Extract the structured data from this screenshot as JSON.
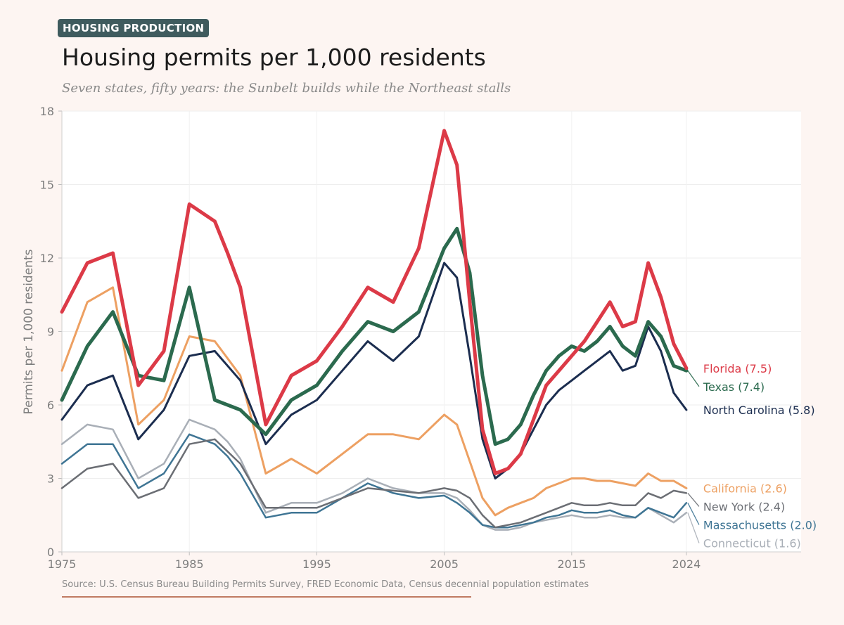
{
  "header": {
    "badge": "HOUSING PRODUCTION",
    "title": "Housing permits per 1,000 residents",
    "subtitle": "Seven states, fifty years: the Sunbelt builds while the Northeast stalls"
  },
  "footer": {
    "source": "Source: U.S. Census Bureau Building Permits Survey, FRED Economic Data, Census decennial population estimates",
    "rule_color": "#c07a62"
  },
  "chart_data": {
    "type": "line",
    "title": "Housing permits per 1,000 residents",
    "xlabel": "",
    "ylabel": "Permits per 1,000 residents",
    "xlim": [
      1975,
      2033
    ],
    "ylim": [
      0,
      18
    ],
    "xticks": [
      1975,
      1985,
      1995,
      2005,
      2015,
      2024
    ],
    "yticks": [
      0,
      3,
      6,
      9,
      12,
      15,
      18
    ],
    "grid": true,
    "legend": "direct labels at line ends (right)",
    "x": [
      1975,
      1977,
      1979,
      1981,
      1983,
      1985,
      1987,
      1988,
      1989,
      1991,
      1993,
      1995,
      1997,
      1999,
      2001,
      2003,
      2005,
      2006,
      2007,
      2008,
      2009,
      2010,
      2011,
      2012,
      2013,
      2014,
      2015,
      2016,
      2017,
      2018,
      2019,
      2020,
      2021,
      2022,
      2023,
      2024
    ],
    "series": [
      {
        "name": "Connecticut",
        "label": "Connecticut (1.6)",
        "color": "#a9afb7",
        "width": 2.5,
        "values": [
          4.4,
          5.2,
          5.0,
          3.0,
          3.6,
          5.4,
          5.0,
          4.5,
          3.8,
          1.6,
          2.0,
          2.0,
          2.4,
          3.0,
          2.6,
          2.4,
          2.4,
          2.2,
          1.7,
          1.1,
          0.9,
          0.9,
          1.0,
          1.2,
          1.3,
          1.4,
          1.5,
          1.4,
          1.4,
          1.5,
          1.4,
          1.4,
          1.8,
          1.5,
          1.2,
          1.6
        ]
      },
      {
        "name": "Massachusetts",
        "label": "Massachusetts (2.0)",
        "color": "#3f7594",
        "width": 2.5,
        "values": [
          3.6,
          4.4,
          4.4,
          2.6,
          3.2,
          4.8,
          4.4,
          3.9,
          3.2,
          1.4,
          1.6,
          1.6,
          2.2,
          2.8,
          2.4,
          2.2,
          2.3,
          2.0,
          1.6,
          1.1,
          1.0,
          1.0,
          1.1,
          1.2,
          1.4,
          1.5,
          1.7,
          1.6,
          1.6,
          1.7,
          1.5,
          1.4,
          1.8,
          1.6,
          1.4,
          2.0
        ]
      },
      {
        "name": "New York",
        "label": "New York (2.4)",
        "color": "#6b6e74",
        "width": 2.5,
        "values": [
          2.6,
          3.4,
          3.6,
          2.2,
          2.6,
          4.4,
          4.6,
          4.1,
          3.6,
          1.8,
          1.8,
          1.8,
          2.2,
          2.6,
          2.5,
          2.4,
          2.6,
          2.5,
          2.2,
          1.5,
          1.0,
          1.1,
          1.2,
          1.4,
          1.6,
          1.8,
          2.0,
          1.9,
          1.9,
          2.0,
          1.9,
          1.9,
          2.4,
          2.2,
          2.5,
          2.4
        ]
      },
      {
        "name": "California",
        "label": "California (2.6)",
        "color": "#eda062",
        "width": 3,
        "values": [
          7.4,
          10.2,
          10.8,
          5.2,
          6.2,
          8.8,
          8.6,
          7.9,
          7.2,
          3.2,
          3.8,
          3.2,
          4.0,
          4.8,
          4.8,
          4.6,
          5.6,
          5.2,
          3.7,
          2.2,
          1.5,
          1.8,
          2.0,
          2.2,
          2.6,
          2.8,
          3.0,
          3.0,
          2.9,
          2.9,
          2.8,
          2.7,
          3.2,
          2.9,
          2.9,
          2.6
        ]
      },
      {
        "name": "North Carolina",
        "label": "North Carolina (5.8)",
        "color": "#1b2d4f",
        "width": 3,
        "values": [
          5.4,
          6.8,
          7.2,
          4.6,
          5.8,
          8.0,
          8.2,
          7.6,
          7.0,
          4.4,
          5.6,
          6.2,
          7.4,
          8.6,
          7.8,
          8.8,
          11.8,
          11.2,
          8.0,
          4.6,
          3.0,
          3.4,
          4.0,
          5.0,
          6.0,
          6.6,
          7.0,
          7.4,
          7.8,
          8.2,
          7.4,
          7.6,
          9.2,
          8.2,
          6.5,
          5.8
        ]
      },
      {
        "name": "Texas",
        "label": "Texas (7.4)",
        "color": "#2b6a4e",
        "width": 5,
        "values": [
          6.2,
          8.4,
          9.8,
          7.2,
          7.0,
          10.8,
          6.2,
          6.0,
          5.8,
          4.8,
          6.2,
          6.8,
          8.2,
          9.4,
          9.0,
          9.8,
          12.4,
          13.2,
          11.4,
          7.2,
          4.4,
          4.6,
          5.2,
          6.4,
          7.4,
          8.0,
          8.4,
          8.2,
          8.6,
          9.2,
          8.4,
          8.0,
          9.4,
          8.8,
          7.6,
          7.4
        ]
      },
      {
        "name": "Florida",
        "label": "Florida (7.5)",
        "color": "#dc3a47",
        "width": 5,
        "values": [
          9.8,
          11.8,
          12.2,
          6.8,
          8.2,
          14.2,
          13.5,
          12.2,
          10.8,
          5.2,
          7.2,
          7.8,
          9.2,
          10.8,
          10.2,
          12.4,
          17.2,
          15.8,
          10.2,
          5.0,
          3.2,
          3.4,
          4.0,
          5.4,
          6.8,
          7.4,
          8.0,
          8.6,
          9.4,
          10.2,
          9.2,
          9.4,
          11.8,
          10.4,
          8.5,
          7.5
        ]
      }
    ]
  }
}
